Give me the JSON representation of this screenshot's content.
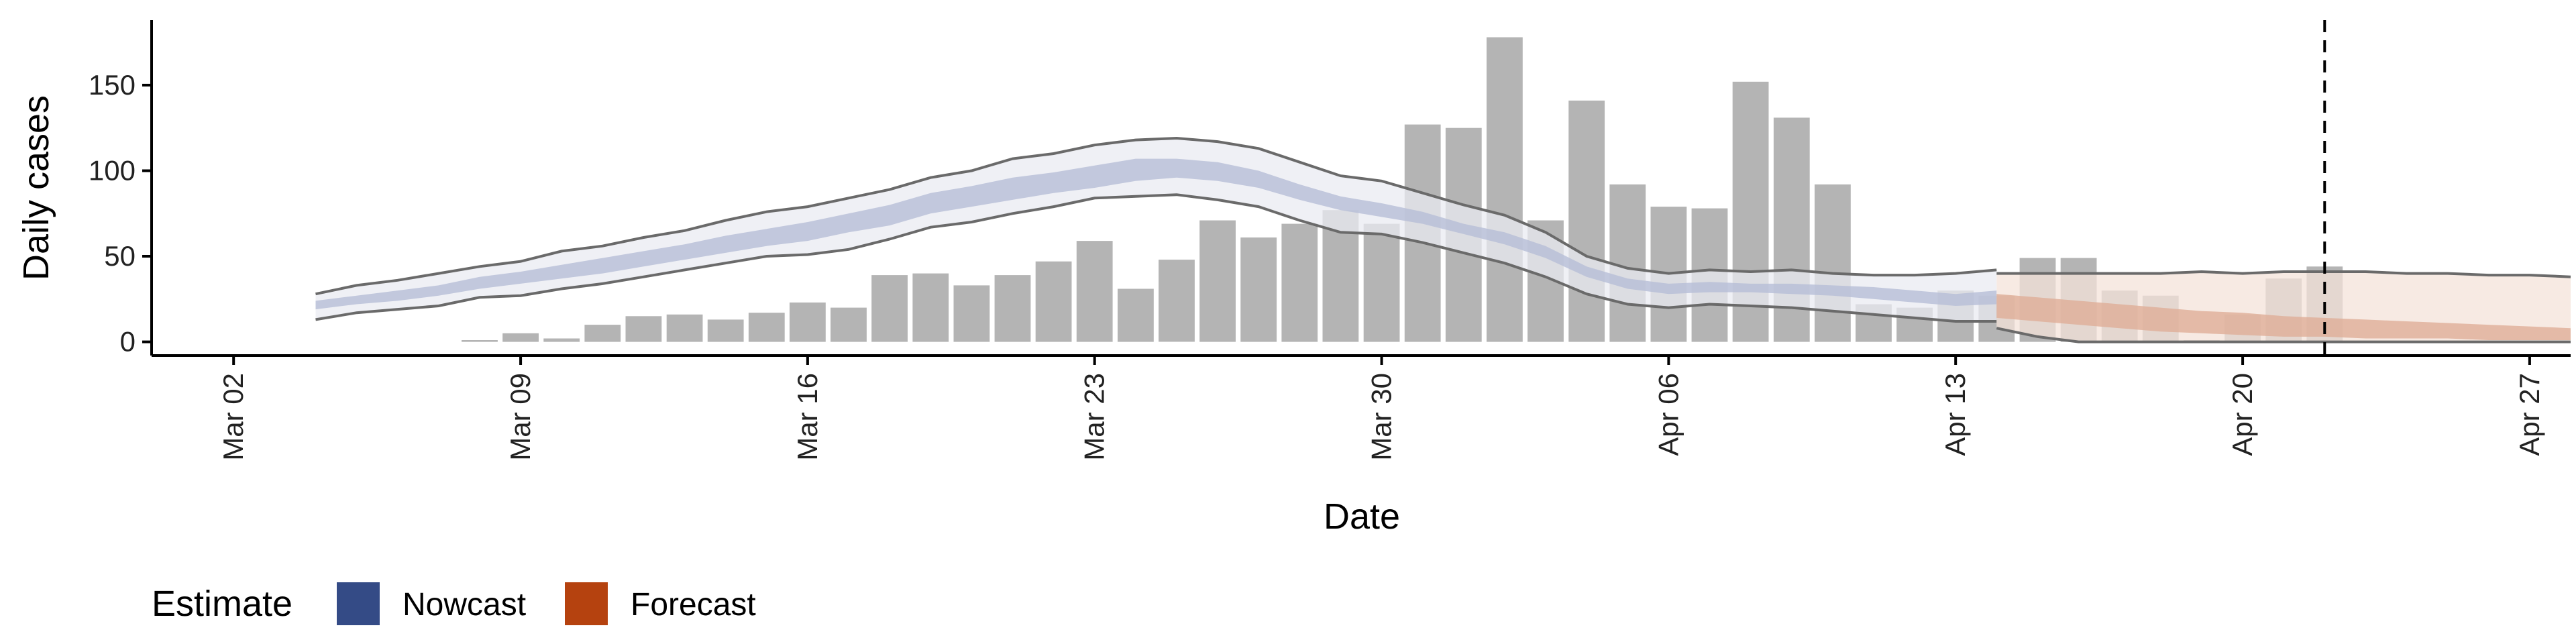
{
  "chart_data": {
    "type": "bar",
    "xlabel": "Date",
    "ylabel": "Daily cases",
    "x_ticks": [
      "Mar 02",
      "Mar 09",
      "Mar 16",
      "Mar 23",
      "Mar 30",
      "Apr 06",
      "Apr 13",
      "Apr 20",
      "Apr 27"
    ],
    "y_ticks": [
      "0",
      "50",
      "100",
      "150"
    ],
    "ylim": [
      -8,
      188
    ],
    "xlim_dates": [
      "2020-02-29",
      "2020-04-28"
    ],
    "grid": false,
    "legend": {
      "title": "Estimate",
      "placement": "bottom-left",
      "items": [
        {
          "label": "Nowcast",
          "color": "#344b86"
        },
        {
          "label": "Forecast",
          "color": "#b5420f"
        }
      ]
    },
    "vline_date": "2020-04-22",
    "bars": {
      "start_date": "2020-03-08",
      "color": "#b4b4b4",
      "values": [
        1,
        5,
        2,
        10,
        15,
        16,
        13,
        17,
        23,
        20,
        39,
        40,
        33,
        39,
        47,
        59,
        31,
        48,
        71,
        61,
        69,
        77,
        69,
        127,
        125,
        178,
        71,
        141,
        92,
        79,
        78,
        152,
        131,
        92,
        22,
        20,
        30,
        27,
        49,
        49,
        30,
        27,
        1,
        16,
        37,
        44
      ]
    },
    "nowcast": {
      "start_date": "2020-03-04",
      "colors": {
        "outer": "#e9ebf2",
        "inner": "#b6bed7",
        "bound_line": "#6a6a6a"
      },
      "upper90": [
        28,
        33,
        36,
        40,
        44,
        47,
        53,
        56,
        61,
        65,
        71,
        76,
        79,
        84,
        89,
        96,
        100,
        107,
        110,
        115,
        118,
        119,
        117,
        113,
        105,
        97,
        94,
        87,
        80,
        74,
        64,
        50,
        43,
        40,
        42,
        41,
        42,
        40,
        39,
        39,
        40,
        42
      ],
      "upper50": [
        24,
        27,
        30,
        33,
        38,
        41,
        45,
        49,
        53,
        57,
        62,
        66,
        70,
        75,
        80,
        87,
        91,
        96,
        99,
        103,
        107,
        107,
        105,
        100,
        92,
        85,
        81,
        76,
        69,
        64,
        56,
        44,
        37,
        34,
        35,
        34,
        34,
        33,
        32,
        30,
        28,
        30
      ],
      "lower50": [
        19,
        22,
        24,
        27,
        31,
        34,
        37,
        40,
        44,
        48,
        52,
        56,
        59,
        64,
        68,
        75,
        79,
        83,
        87,
        90,
        94,
        96,
        94,
        90,
        83,
        77,
        73,
        69,
        63,
        57,
        49,
        38,
        31,
        28,
        29,
        29,
        28,
        27,
        25,
        23,
        21,
        22
      ],
      "lower90": [
        13,
        17,
        19,
        21,
        26,
        27,
        31,
        34,
        38,
        42,
        46,
        50,
        51,
        54,
        60,
        67,
        70,
        75,
        79,
        84,
        85,
        86,
        83,
        79,
        71,
        64,
        63,
        58,
        52,
        46,
        38,
        28,
        22,
        20,
        22,
        21,
        20,
        18,
        16,
        14,
        12,
        12
      ]
    },
    "forecast": {
      "start_date": "2020-04-14",
      "colors": {
        "outer": "#f4e3d9",
        "inner": "#dfae97",
        "bound_line": "#6a6a6a"
      },
      "upper90": [
        40,
        40,
        40,
        40,
        40,
        41,
        40,
        41,
        41,
        41,
        40,
        40,
        39,
        39,
        38
      ],
      "upper50": [
        28,
        26,
        24,
        22,
        20,
        18,
        17,
        15,
        14,
        13,
        12,
        11,
        10,
        9,
        8
      ],
      "lower50": [
        14,
        12,
        10,
        8,
        6,
        5,
        4,
        3,
        3,
        2,
        2,
        2,
        1,
        1,
        1
      ],
      "lower90": [
        8,
        3,
        0,
        0,
        0,
        0,
        0,
        0,
        0,
        0,
        0,
        0,
        0,
        0,
        0
      ]
    }
  }
}
